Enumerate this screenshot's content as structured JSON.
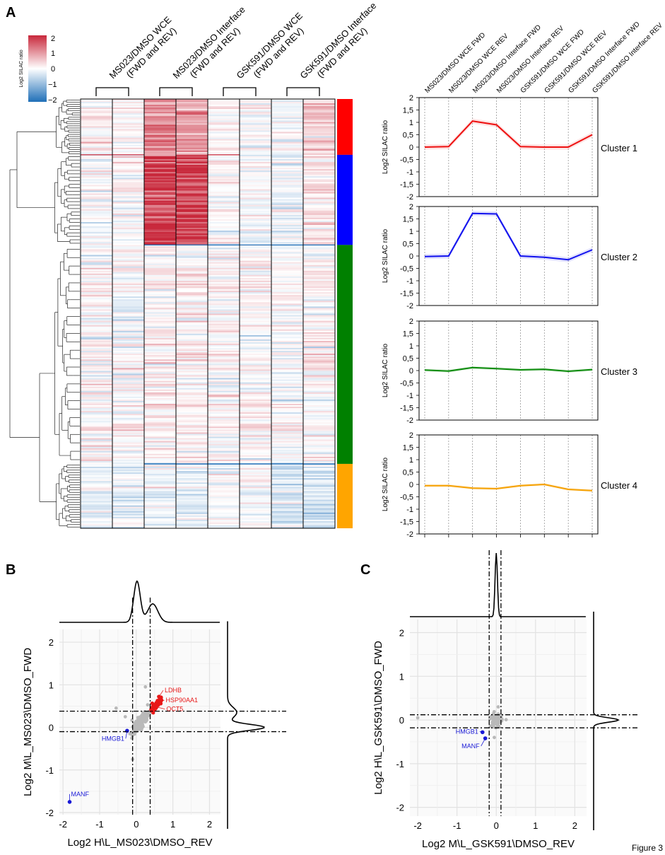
{
  "figure_label": "Figure 3",
  "panels": {
    "a": "A",
    "b": "B",
    "c": "C"
  },
  "colors": {
    "red": "#d7263d",
    "blue": "#1f3fd6",
    "green": "#138a13",
    "orange": "#f5a200",
    "pos": "#c8283b",
    "neg": "#1f6fb8",
    "grey": "#b5b5b5"
  },
  "chart_data": [
    {
      "type": "heatmap",
      "legend": {
        "label": "Log2 SILAC ratio",
        "ticks": [
          "2",
          "1",
          "0",
          "−1",
          "−2"
        ],
        "range": [
          -2,
          2
        ]
      },
      "group_labels": [
        {
          "line1": "MS023/DMSO WCE",
          "line2": "(FWD and REV)"
        },
        {
          "line1": "MS023/DMSO Interface",
          "line2": "(FWD and REV)"
        },
        {
          "line1": "GSK591/DMSO WCE",
          "line2": "(FWD and REV)"
        },
        {
          "line1": "GSK591/DMSO Interface",
          "line2": "(FWD and REV)"
        }
      ],
      "columns": [
        "MS023/DMSO WCE FWD",
        "MS023/DMSO WCE REV",
        "MS023/DMSO Interface FWD",
        "MS023/DMSO Interface REV",
        "GSK591/DMSO WCE FWD",
        "GSK591/DMSO WCE REV",
        "GSK591/DMSO Interface FWD",
        "GSK591/DMSO Interface REV"
      ],
      "clusters": [
        {
          "name": "Cluster 1",
          "fraction": 0.13,
          "color": "#ff0000",
          "means": [
            0.0,
            0.02,
            1.05,
            0.9,
            0.02,
            0.0,
            0.0,
            0.5
          ]
        },
        {
          "name": "Cluster 2",
          "fraction": 0.21,
          "color": "#0000ff",
          "means": [
            -0.02,
            0.0,
            1.72,
            1.7,
            0.0,
            -0.05,
            -0.15,
            0.25
          ]
        },
        {
          "name": "Cluster 3",
          "fraction": 0.51,
          "color": "#008000",
          "means": [
            0.02,
            -0.02,
            0.12,
            0.08,
            0.03,
            0.05,
            -0.03,
            0.04
          ]
        },
        {
          "name": "Cluster 4",
          "fraction": 0.15,
          "color": "#ffa500",
          "means": [
            -0.05,
            -0.05,
            -0.15,
            -0.17,
            -0.05,
            0.0,
            -0.2,
            -0.25
          ]
        }
      ]
    },
    {
      "type": "line",
      "ylabel": "Log2 SILAC ratio",
      "ylim": [
        -2,
        2
      ],
      "yticks": [
        "2",
        "1,5",
        "1",
        "0,5",
        "0",
        "-0,5",
        "-1",
        "-1,5",
        "-2"
      ],
      "x": [
        "MS023/DMSO WCE FWD",
        "MS023/DMSO WCE REV",
        "MS023/DMSO Interface FWD",
        "MS023/DMSO Interface REV",
        "GSK591/DMSO WCE FWD",
        "GSK591/DMSO WCE REV",
        "GSK591/DMSO Interface FWD",
        "GSK591/DMSO Interface REV"
      ],
      "series": [
        {
          "name": "Cluster 1",
          "color": "#ee1111",
          "values": [
            0.0,
            0.02,
            1.05,
            0.9,
            0.02,
            0.0,
            0.0,
            0.5
          ]
        },
        {
          "name": "Cluster 2",
          "color": "#1111ee",
          "values": [
            -0.02,
            0.0,
            1.72,
            1.7,
            0.0,
            -0.05,
            -0.15,
            0.25
          ]
        },
        {
          "name": "Cluster 3",
          "color": "#0a8a0a",
          "values": [
            0.02,
            -0.02,
            0.12,
            0.08,
            0.03,
            0.05,
            -0.03,
            0.04
          ]
        },
        {
          "name": "Cluster 4",
          "color": "#f5a000",
          "values": [
            -0.05,
            -0.05,
            -0.15,
            -0.17,
            -0.05,
            0.0,
            -0.2,
            -0.25
          ]
        }
      ]
    },
    {
      "type": "scatter",
      "xlabel": "Log2 H\\L_MS023\\DMSO_REV",
      "ylabel": "Log2 M\\L_MS023\\DMSO_FWD",
      "xlim": [
        -2.1,
        2.3
      ],
      "ylim": [
        -2.05,
        2.3
      ],
      "ticks": [
        -2,
        -1,
        0,
        1,
        2
      ],
      "cutoffs_x": [
        -0.1,
        0.38
      ],
      "cutoffs_y": [
        -0.1,
        0.38
      ],
      "labeled": [
        {
          "name": "LDHB",
          "x": 0.62,
          "y": 0.72,
          "color": "red"
        },
        {
          "name": "HSP90AA1",
          "x": 0.65,
          "y": 0.62,
          "color": "red"
        },
        {
          "name": "OCT5",
          "x": 0.55,
          "y": 0.48,
          "color": "red"
        },
        {
          "name": "HMGB1",
          "x": -0.25,
          "y": -0.08,
          "color": "blue"
        },
        {
          "name": "MANF",
          "x": -1.82,
          "y": -1.75,
          "color": "blue"
        }
      ]
    },
    {
      "type": "scatter",
      "xlabel": "Log2 M\\L_GSK591\\DMSO_REV",
      "ylabel": "Log2 H\\L_GSK591\\DMSO_FWD",
      "xlim": [
        -2.2,
        2.3
      ],
      "ylim": [
        -2.2,
        2.3
      ],
      "ticks": [
        -2,
        -1,
        0,
        1,
        2
      ],
      "cutoffs_x": [
        -0.18,
        0.12
      ],
      "cutoffs_y": [
        -0.18,
        0.12
      ],
      "labeled": [
        {
          "name": "HMGB1",
          "x": -0.35,
          "y": -0.28,
          "color": "blue"
        },
        {
          "name": "MANF",
          "x": -0.28,
          "y": -0.42,
          "color": "blue"
        }
      ]
    }
  ]
}
